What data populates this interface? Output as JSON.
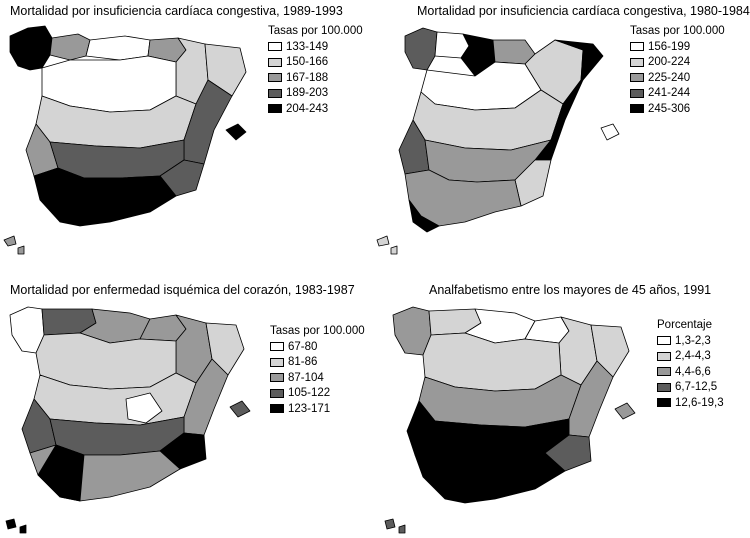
{
  "panels": [
    {
      "title": "Mortalidad por insuficiencia cardíaca congestiva, 1989-1993",
      "legend": {
        "title": "Tasas por 100.000",
        "items": [
          {
            "label": "133-149",
            "color": "#ffffff"
          },
          {
            "label": "150-166",
            "color": "#d4d4d4"
          },
          {
            "label": "167-188",
            "color": "#999999"
          },
          {
            "label": "189-203",
            "color": "#5c5c5c"
          },
          {
            "label": "204-243",
            "color": "#000000"
          }
        ]
      }
    },
    {
      "title": "Mortalidad por insuficiencia cardíaca congestiva, 1980-1984",
      "legend": {
        "title": "Tasas por 100.000",
        "items": [
          {
            "label": "156-199",
            "color": "#ffffff"
          },
          {
            "label": "200-224",
            "color": "#d4d4d4"
          },
          {
            "label": "225-240",
            "color": "#999999"
          },
          {
            "label": "241-244",
            "color": "#5c5c5c"
          },
          {
            "label": "245-306",
            "color": "#000000"
          }
        ]
      }
    },
    {
      "title": "Mortalidad por enfermedad isquémica del corazón, 1983-1987",
      "legend": {
        "title": "Tasas por 100.000",
        "items": [
          {
            "label": "67-80",
            "color": "#ffffff"
          },
          {
            "label": "81-86",
            "color": "#d4d4d4"
          },
          {
            "label": "87-104",
            "color": "#999999"
          },
          {
            "label": "105-122",
            "color": "#5c5c5c"
          },
          {
            "label": "123-171",
            "color": "#000000"
          }
        ]
      }
    },
    {
      "title": "Analfabetismo entre los mayores de 45 años, 1991",
      "legend": {
        "title": "Porcentaje",
        "items": [
          {
            "label": "1,3-2,3",
            "color": "#ffffff"
          },
          {
            "label": "2,4-4,3",
            "color": "#d4d4d4"
          },
          {
            "label": "4,4-6,6",
            "color": "#999999"
          },
          {
            "label": "6,7-12,5",
            "color": "#5c5c5c"
          },
          {
            "label": "12,6-19,3",
            "color": "#000000"
          }
        ]
      }
    }
  ]
}
